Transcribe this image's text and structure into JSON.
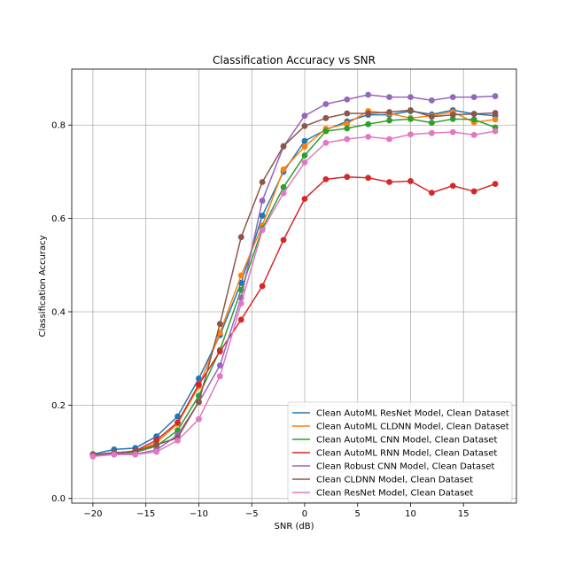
{
  "chart_data": {
    "type": "line",
    "title": "Classification Accuracy vs SNR",
    "xlabel": "SNR (dB)",
    "ylabel": "Classification Accuracy",
    "xlim": [
      -22,
      20
    ],
    "ylim": [
      -0.01,
      0.92
    ],
    "xticks": [
      -20,
      -15,
      -10,
      -5,
      0,
      5,
      10,
      15
    ],
    "yticks": [
      0.0,
      0.2,
      0.4,
      0.6,
      0.8
    ],
    "ytick_labels": [
      "0.0",
      "0.2",
      "0.4",
      "0.6",
      "0.8"
    ],
    "grid": true,
    "legend_position": "lower-right",
    "x": [
      -20,
      -18,
      -16,
      -14,
      -12,
      -10,
      -8,
      -6,
      -4,
      -2,
      0,
      2,
      4,
      6,
      8,
      10,
      12,
      14,
      16,
      18
    ],
    "series": [
      {
        "name": "Clean AutoML ResNet Model, Clean Dataset",
        "color": "#1f77b4",
        "values": [
          0.095,
          0.105,
          0.108,
          0.133,
          0.176,
          0.257,
          0.35,
          0.462,
          0.606,
          0.7,
          0.766,
          0.79,
          0.808,
          0.822,
          0.822,
          0.83,
          0.823,
          0.832,
          0.824,
          0.82
        ]
      },
      {
        "name": "Clean AutoML CLDNN Model, Clean Dataset",
        "color": "#ff7f0e",
        "values": [
          0.094,
          0.098,
          0.1,
          0.12,
          0.16,
          0.24,
          0.355,
          0.478,
          0.585,
          0.705,
          0.754,
          0.792,
          0.803,
          0.83,
          0.825,
          0.815,
          0.82,
          0.828,
          0.806,
          0.812
        ]
      },
      {
        "name": "Clean AutoML CNN Model, Clean Dataset",
        "color": "#2ca02c",
        "values": [
          0.093,
          0.097,
          0.099,
          0.112,
          0.146,
          0.22,
          0.318,
          0.447,
          0.578,
          0.667,
          0.735,
          0.787,
          0.793,
          0.802,
          0.81,
          0.813,
          0.805,
          0.813,
          0.812,
          0.795
        ]
      },
      {
        "name": "Clean AutoML RNN Model, Clean Dataset",
        "color": "#d62728",
        "values": [
          0.092,
          0.097,
          0.102,
          0.125,
          0.163,
          0.244,
          0.315,
          0.383,
          0.455,
          0.554,
          0.642,
          0.684,
          0.689,
          0.687,
          0.678,
          0.68,
          0.655,
          0.67,
          0.658,
          0.674
        ]
      },
      {
        "name": "Clean Robust CNN Model, Clean Dataset",
        "color": "#9467bd",
        "values": [
          0.093,
          0.096,
          0.095,
          0.104,
          0.136,
          0.206,
          0.285,
          0.43,
          0.638,
          0.754,
          0.82,
          0.845,
          0.855,
          0.865,
          0.86,
          0.86,
          0.853,
          0.86,
          0.86,
          0.862
        ]
      },
      {
        "name": "Clean CLDNN Model, Clean Dataset",
        "color": "#8c564b",
        "values": [
          0.094,
          0.098,
          0.101,
          0.115,
          0.13,
          0.207,
          0.374,
          0.56,
          0.678,
          0.755,
          0.798,
          0.815,
          0.825,
          0.825,
          0.828,
          0.832,
          0.818,
          0.822,
          0.824,
          0.826
        ]
      },
      {
        "name": "Clean ResNet Model, Clean Dataset",
        "color": "#e377c2",
        "values": [
          0.09,
          0.094,
          0.094,
          0.1,
          0.124,
          0.17,
          0.262,
          0.418,
          0.575,
          0.654,
          0.72,
          0.762,
          0.77,
          0.775,
          0.77,
          0.78,
          0.783,
          0.785,
          0.779,
          0.787
        ]
      }
    ]
  }
}
